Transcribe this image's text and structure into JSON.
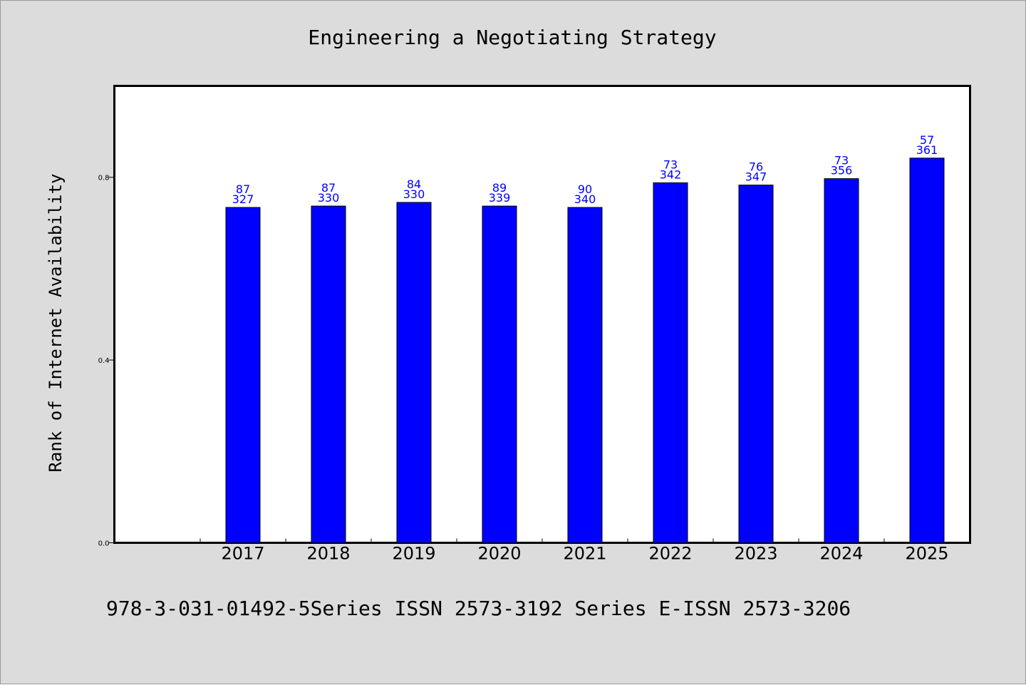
{
  "chart_data": {
    "type": "bar",
    "title": "Engineering a Negotiating Strategy",
    "xlabel": "",
    "ylabel": "Rank of Internet Availability",
    "categories": [
      "2017",
      "2018",
      "2019",
      "2020",
      "2021",
      "2022",
      "2023",
      "2024",
      "2025"
    ],
    "series": [
      {
        "values": [
          0.734,
          0.737,
          0.745,
          0.737,
          0.734,
          0.788,
          0.783,
          0.797,
          0.842
        ],
        "labels_top": [
          "87",
          "87",
          "84",
          "89",
          "90",
          "73",
          "76",
          "73",
          "57"
        ],
        "labels_bottom": [
          "327",
          "330",
          "330",
          "339",
          "340",
          "342",
          "347",
          "356",
          "361"
        ]
      }
    ],
    "ylim": [
      0,
      1.0
    ],
    "yticks": [
      "0.0",
      "0.4",
      "0.8"
    ],
    "ytick_values": [
      0.0,
      0.4,
      0.8
    ],
    "grid": false,
    "bar_color": "#0000ff",
    "label_color": "#0000ff"
  },
  "footer": {
    "text": "978-3-031-01492-5Series ISSN 2573-3192 Series E-ISSN 2573-3206"
  },
  "colors": {
    "background": "#dcdcdc",
    "plot_background": "#ffffff",
    "axis": "#000000"
  }
}
